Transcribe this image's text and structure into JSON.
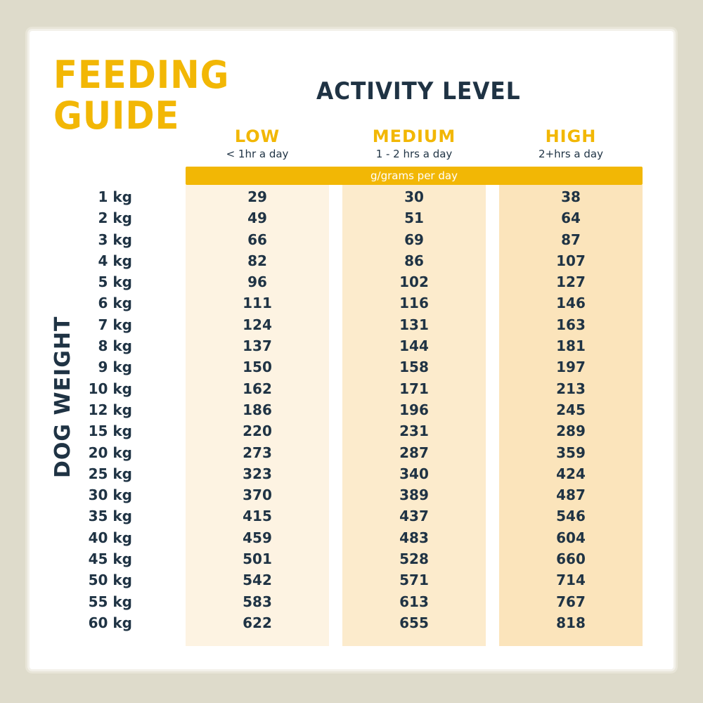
{
  "title": {
    "line1": "FEEDING",
    "line2": "GUIDE"
  },
  "activity_label": "ACTIVITY LEVEL",
  "columns": [
    {
      "level": "LOW",
      "detail": "< 1hr a day"
    },
    {
      "level": "MEDIUM",
      "detail": "1 - 2 hrs a day"
    },
    {
      "level": "HIGH",
      "detail": "2+hrs a day"
    }
  ],
  "unit_bar": "g/grams per day",
  "row_label": "DOG WEIGHT",
  "rows": [
    {
      "weight": "1 kg",
      "low": "29",
      "medium": "30",
      "high": "38"
    },
    {
      "weight": "2 kg",
      "low": "49",
      "medium": "51",
      "high": "64"
    },
    {
      "weight": "3 kg",
      "low": "66",
      "medium": "69",
      "high": "87"
    },
    {
      "weight": "4 kg",
      "low": "82",
      "medium": "86",
      "high": "107"
    },
    {
      "weight": "5 kg",
      "low": "96",
      "medium": "102",
      "high": "127"
    },
    {
      "weight": "6 kg",
      "low": "111",
      "medium": "116",
      "high": "146"
    },
    {
      "weight": "7 kg",
      "low": "124",
      "medium": "131",
      "high": "163"
    },
    {
      "weight": "8 kg",
      "low": "137",
      "medium": "144",
      "high": "181"
    },
    {
      "weight": "9 kg",
      "low": "150",
      "medium": "158",
      "high": "197"
    },
    {
      "weight": "10 kg",
      "low": "162",
      "medium": "171",
      "high": "213"
    },
    {
      "weight": "12 kg",
      "low": "186",
      "medium": "196",
      "high": "245"
    },
    {
      "weight": "15 kg",
      "low": "220",
      "medium": "231",
      "high": "289"
    },
    {
      "weight": "20 kg",
      "low": "273",
      "medium": "287",
      "high": "359"
    },
    {
      "weight": "25 kg",
      "low": "323",
      "medium": "340",
      "high": "424"
    },
    {
      "weight": "30 kg",
      "low": "370",
      "medium": "389",
      "high": "487"
    },
    {
      "weight": "35 kg",
      "low": "415",
      "medium": "437",
      "high": "546"
    },
    {
      "weight": "40 kg",
      "low": "459",
      "medium": "483",
      "high": "604"
    },
    {
      "weight": "45 kg",
      "low": "501",
      "medium": "528",
      "high": "660"
    },
    {
      "weight": "50 kg",
      "low": "542",
      "medium": "571",
      "high": "714"
    },
    {
      "weight": "55 kg",
      "low": "583",
      "medium": "613",
      "high": "767"
    },
    {
      "weight": "60 kg",
      "low": "622",
      "medium": "655",
      "high": "818"
    }
  ],
  "colors": {
    "accent": "#f2b705",
    "ink": "#1f3344",
    "background": "#dedbcb"
  }
}
